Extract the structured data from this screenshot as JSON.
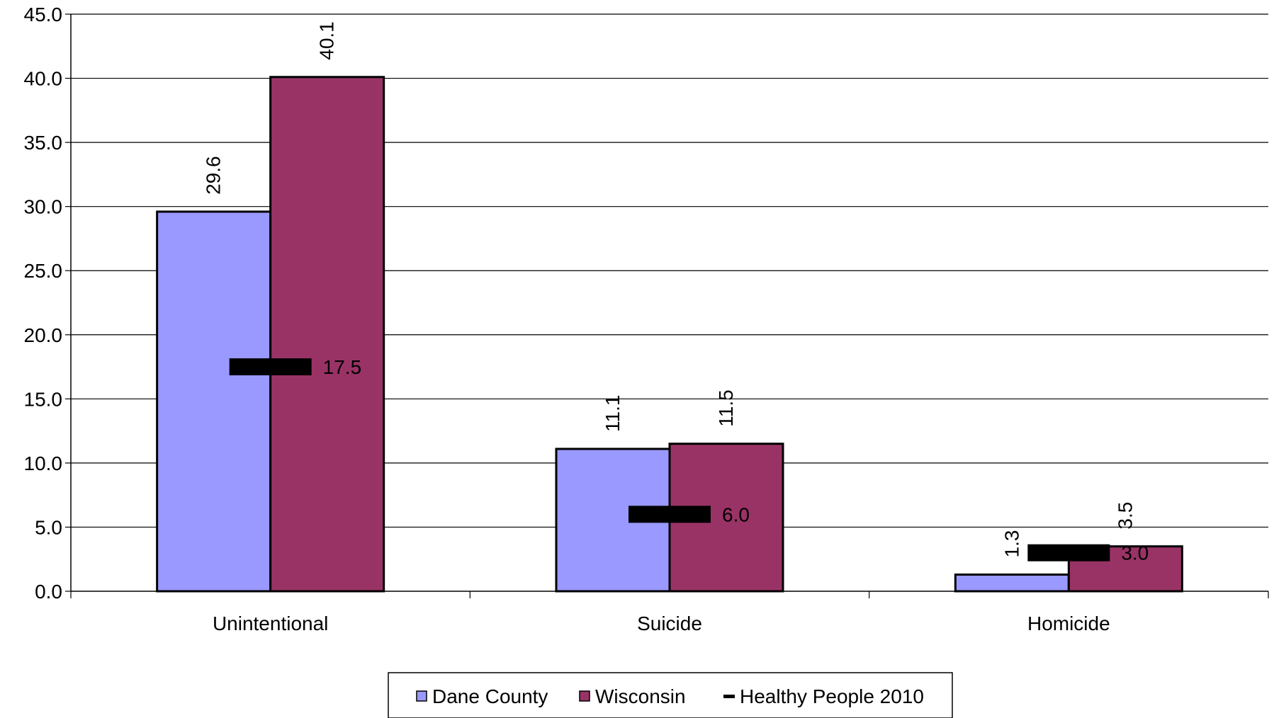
{
  "chart_data": {
    "type": "bar",
    "title": "",
    "xlabel": "",
    "ylabel": "",
    "ylim": [
      0,
      45
    ],
    "ytick_step": 5,
    "ytick_labels": [
      "0.0",
      "5.0",
      "10.0",
      "15.0",
      "20.0",
      "25.0",
      "30.0",
      "35.0",
      "40.0",
      "45.0"
    ],
    "grid": true,
    "legend_position": "bottom",
    "categories": [
      "Unintentional",
      "Suicide",
      "Homicide"
    ],
    "series": [
      {
        "name": "Dane County",
        "color": "#9999ff",
        "values": [
          29.6,
          11.1,
          1.3
        ],
        "labels": [
          "29.6",
          "11.1",
          "1.3"
        ]
      },
      {
        "name": "Wisconsin",
        "color": "#993366",
        "values": [
          40.1,
          11.5,
          3.5
        ],
        "labels": [
          "40.1",
          "11.5",
          "3.5"
        ]
      }
    ],
    "target": {
      "name": "Healthy People 2010",
      "color": "#000000",
      "values": [
        17.5,
        6.0,
        3.0
      ],
      "labels": [
        "17.5",
        "6.0",
        "3.0"
      ]
    }
  }
}
